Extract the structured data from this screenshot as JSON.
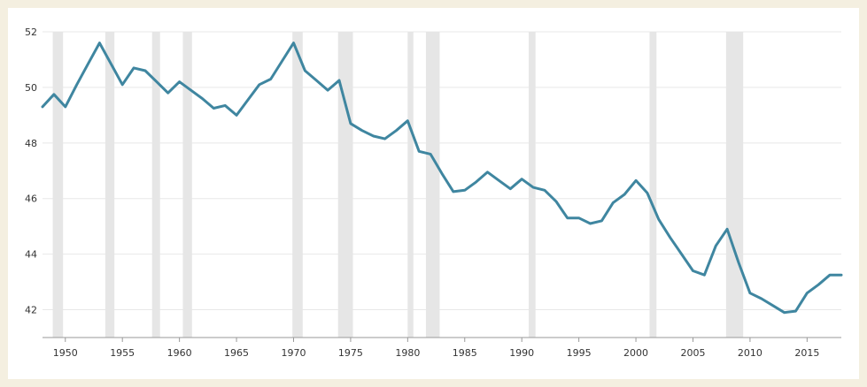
{
  "chart_data": {
    "type": "line",
    "title": "",
    "xlabel": "",
    "ylabel": "",
    "xlim": [
      1948,
      2018
    ],
    "ylim": [
      41,
      52
    ],
    "y_ticks": [
      42,
      44,
      46,
      48,
      50,
      52
    ],
    "x_ticks": [
      1950,
      1955,
      1960,
      1965,
      1970,
      1975,
      1980,
      1985,
      1990,
      1995,
      2000,
      2005,
      2010,
      2015
    ],
    "grid": "horizontal",
    "legend": "none",
    "colors": {
      "line": "#3f86a0",
      "recession_band": "#e6e6e6",
      "grid": "#e8e8e8",
      "axis": "#999999",
      "background": "#ffffff",
      "border": "#f4efe0"
    },
    "recessions": [
      [
        1948.9,
        1949.8
      ],
      [
        1953.5,
        1954.3
      ],
      [
        1957.6,
        1958.3
      ],
      [
        1960.3,
        1961.1
      ],
      [
        1969.9,
        1970.8
      ],
      [
        1973.9,
        1975.2
      ],
      [
        1980.0,
        1980.5
      ],
      [
        1981.6,
        1982.8
      ],
      [
        1990.6,
        1991.2
      ],
      [
        2001.2,
        2001.8
      ],
      [
        2007.9,
        2009.4
      ]
    ],
    "series": [
      {
        "x": [
          1948,
          1949,
          1950,
          1951,
          1952,
          1953,
          1954,
          1955,
          1956,
          1957,
          1958,
          1959,
          1960,
          1961,
          1962,
          1963,
          1964,
          1965,
          1966,
          1967,
          1968,
          1969,
          1970,
          1971,
          1972,
          1973,
          1974,
          1975,
          1976,
          1977,
          1978,
          1979,
          1980,
          1981,
          1982,
          1983,
          1984,
          1985,
          1986,
          1987,
          1988,
          1989,
          1990,
          1991,
          1992,
          1993,
          1994,
          1995,
          1996,
          1997,
          1998,
          1999,
          2000,
          2001,
          2002,
          2003,
          2004,
          2005,
          2006,
          2007,
          2008,
          2009,
          2010,
          2011,
          2012,
          2013,
          2014,
          2015,
          2016,
          2017,
          2018
        ],
        "values": [
          49.3,
          49.75,
          49.3,
          50.1,
          50.85,
          51.6,
          50.85,
          50.1,
          50.7,
          50.6,
          50.2,
          49.8,
          50.2,
          49.9,
          49.6,
          49.25,
          49.35,
          49.0,
          49.55,
          50.1,
          50.3,
          50.95,
          51.6,
          50.6,
          50.25,
          49.9,
          50.25,
          48.7,
          48.45,
          48.25,
          48.15,
          48.45,
          48.8,
          47.7,
          47.6,
          46.9,
          46.25,
          46.3,
          46.6,
          46.95,
          46.65,
          46.35,
          46.7,
          46.4,
          46.3,
          45.9,
          45.3,
          45.3,
          45.1,
          45.2,
          45.85,
          46.15,
          46.65,
          46.2,
          45.25,
          44.6,
          44.0,
          43.4,
          43.25,
          44.3,
          44.9,
          43.7,
          42.6,
          42.4,
          42.15,
          41.9,
          41.95,
          42.6,
          42.9,
          43.25,
          43.25
        ]
      }
    ]
  }
}
